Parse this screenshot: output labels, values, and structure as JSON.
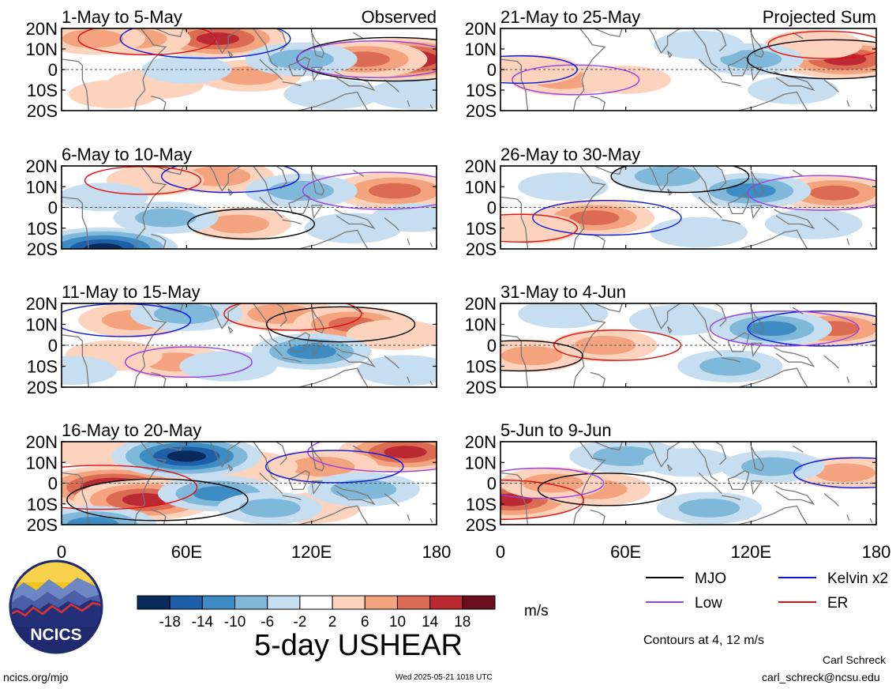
{
  "figure": {
    "title": "5-day USHEAR",
    "units": "m/s",
    "contour_note": "Contours at 4, 12 m/s",
    "footer_left": "ncics.org/mjo",
    "footer_center": "Wed 2025-05-21 1018 UTC",
    "author": "Carl Schreck",
    "email": "carl_schreck@ncsu.edu",
    "logo_text": "NCICS"
  },
  "colors": {
    "colorbar": [
      "#0a2a5c",
      "#1f5fa8",
      "#3d8cc4",
      "#80b8da",
      "#c6def0",
      "#ffffff",
      "#fdd3bd",
      "#f4a37f",
      "#dc6b53",
      "#bb2a33",
      "#6b0f20"
    ],
    "mjo": "#000000",
    "low": "#9a3fe0",
    "kelvin": "#0a18d8",
    "er": "#e01010",
    "coast": "#777777"
  },
  "chart_data": [
    {
      "type": "heatmap",
      "panel": "1-May to 5-May",
      "label": "Observed",
      "column": "observed",
      "x_range": [
        0,
        180
      ],
      "y_range": [
        -20,
        20
      ],
      "units": "m/s",
      "features": [
        {
          "lon": 165,
          "lat": 5,
          "value": 20
        },
        {
          "lon": 145,
          "lat": 5,
          "value": 14
        },
        {
          "lon": 75,
          "lat": 15,
          "value": 16
        },
        {
          "lon": 35,
          "lat": 15,
          "value": 10
        },
        {
          "lon": 15,
          "lat": 15,
          "value": 8
        },
        {
          "lon": 90,
          "lat": -3,
          "value": 8
        },
        {
          "lon": 45,
          "lat": -7,
          "value": 6
        },
        {
          "lon": 25,
          "lat": -12,
          "value": 4
        },
        {
          "lon": 115,
          "lat": 5,
          "value": -10
        },
        {
          "lon": 130,
          "lat": -12,
          "value": -6
        },
        {
          "lon": 170,
          "lat": -12,
          "value": -6
        },
        {
          "lon": 60,
          "lat": 0,
          "value": -4
        }
      ]
    },
    {
      "type": "heatmap",
      "panel": "6-May to 10-May",
      "column": "observed",
      "x_range": [
        0,
        180
      ],
      "y_range": [
        -20,
        20
      ],
      "units": "m/s",
      "features": [
        {
          "lon": 160,
          "lat": 8,
          "value": 14
        },
        {
          "lon": 75,
          "lat": 15,
          "value": 10
        },
        {
          "lon": 45,
          "lat": 13,
          "value": 6
        },
        {
          "lon": 85,
          "lat": -8,
          "value": 8
        },
        {
          "lon": 20,
          "lat": -20,
          "value": -20
        },
        {
          "lon": 115,
          "lat": 8,
          "value": -10
        },
        {
          "lon": 50,
          "lat": -5,
          "value": -8
        },
        {
          "lon": 20,
          "lat": 5,
          "value": -4
        },
        {
          "lon": 140,
          "lat": -10,
          "value": -6
        },
        {
          "lon": 170,
          "lat": -5,
          "value": -4
        }
      ]
    },
    {
      "type": "heatmap",
      "panel": "11-May to 15-May",
      "column": "observed",
      "x_range": [
        0,
        180
      ],
      "y_range": [
        -20,
        20
      ],
      "units": "m/s",
      "features": [
        {
          "lon": 35,
          "lat": 12,
          "value": 10
        },
        {
          "lon": 105,
          "lat": 15,
          "value": 10
        },
        {
          "lon": 140,
          "lat": 10,
          "value": 12
        },
        {
          "lon": 55,
          "lat": -8,
          "value": 8
        },
        {
          "lon": 25,
          "lat": -5,
          "value": 6
        },
        {
          "lon": 160,
          "lat": 5,
          "value": 6
        },
        {
          "lon": 60,
          "lat": 15,
          "value": -10
        },
        {
          "lon": 120,
          "lat": -3,
          "value": -12
        },
        {
          "lon": 80,
          "lat": -10,
          "value": -6
        },
        {
          "lon": 165,
          "lat": -12,
          "value": -6
        },
        {
          "lon": 5,
          "lat": -12,
          "value": -4
        }
      ]
    },
    {
      "type": "heatmap",
      "panel": "16-May to 20-May",
      "column": "observed",
      "x_range": [
        0,
        180
      ],
      "y_range": [
        -20,
        20
      ],
      "units": "m/s",
      "features": [
        {
          "lon": 25,
          "lat": -2,
          "value": 20
        },
        {
          "lon": 40,
          "lat": -8,
          "value": 18
        },
        {
          "lon": 165,
          "lat": 15,
          "value": 16
        },
        {
          "lon": 125,
          "lat": 8,
          "value": 10
        },
        {
          "lon": 90,
          "lat": 8,
          "value": 6
        },
        {
          "lon": 120,
          "lat": -12,
          "value": 6
        },
        {
          "lon": 15,
          "lat": 15,
          "value": 4
        },
        {
          "lon": 60,
          "lat": 13,
          "value": -20
        },
        {
          "lon": 75,
          "lat": -5,
          "value": -12
        },
        {
          "lon": 15,
          "lat": -20,
          "value": -14
        },
        {
          "lon": 145,
          "lat": -3,
          "value": -10
        },
        {
          "lon": 100,
          "lat": -12,
          "value": -8
        }
      ]
    },
    {
      "type": "heatmap",
      "panel": "21-May to 25-May",
      "label": "Projected Sum",
      "column": "projected",
      "x_range": [
        0,
        180
      ],
      "y_range": [
        -20,
        20
      ],
      "units": "m/s",
      "features": [
        {
          "lon": 165,
          "lat": 5,
          "value": 16
        },
        {
          "lon": 30,
          "lat": -5,
          "value": 8
        },
        {
          "lon": 15,
          "lat": 0,
          "value": 6
        },
        {
          "lon": 150,
          "lat": 12,
          "value": 6
        },
        {
          "lon": 60,
          "lat": -5,
          "value": 4
        },
        {
          "lon": 120,
          "lat": 5,
          "value": -8
        },
        {
          "lon": 140,
          "lat": -10,
          "value": -4
        },
        {
          "lon": 95,
          "lat": 12,
          "value": -4
        }
      ]
    },
    {
      "type": "heatmap",
      "panel": "26-May to 30-May",
      "column": "projected",
      "x_range": [
        0,
        180
      ],
      "y_range": [
        -20,
        20
      ],
      "units": "m/s",
      "features": [
        {
          "lon": 160,
          "lat": 7,
          "value": 12
        },
        {
          "lon": 45,
          "lat": -5,
          "value": 12
        },
        {
          "lon": 15,
          "lat": -10,
          "value": 6
        },
        {
          "lon": 80,
          "lat": 15,
          "value": -10
        },
        {
          "lon": 120,
          "lat": 8,
          "value": -12
        },
        {
          "lon": 150,
          "lat": -8,
          "value": -6
        },
        {
          "lon": 30,
          "lat": 10,
          "value": -4
        },
        {
          "lon": 95,
          "lat": -12,
          "value": -6
        }
      ]
    },
    {
      "type": "heatmap",
      "panel": "31-May to 4-Jun",
      "column": "projected",
      "x_range": [
        0,
        180
      ],
      "y_range": [
        -20,
        20
      ],
      "units": "m/s",
      "features": [
        {
          "lon": 160,
          "lat": 8,
          "value": 12
        },
        {
          "lon": 50,
          "lat": 0,
          "value": 8
        },
        {
          "lon": 15,
          "lat": -5,
          "value": 8
        },
        {
          "lon": 130,
          "lat": 8,
          "value": -12
        },
        {
          "lon": 110,
          "lat": -10,
          "value": -8
        },
        {
          "lon": 85,
          "lat": 12,
          "value": -6
        },
        {
          "lon": 30,
          "lat": 15,
          "value": -4
        }
      ]
    },
    {
      "type": "heatmap",
      "panel": "5-Jun to 9-Jun",
      "column": "projected",
      "x_range": [
        0,
        180
      ],
      "y_range": [
        -20,
        20
      ],
      "units": "m/s",
      "features": [
        {
          "lon": 5,
          "lat": -8,
          "value": 16
        },
        {
          "lon": 45,
          "lat": -3,
          "value": 10
        },
        {
          "lon": 25,
          "lat": 0,
          "value": 8
        },
        {
          "lon": 165,
          "lat": 5,
          "value": 8
        },
        {
          "lon": 60,
          "lat": 13,
          "value": -10
        },
        {
          "lon": 100,
          "lat": -12,
          "value": -8
        },
        {
          "lon": 130,
          "lat": 8,
          "value": -8
        },
        {
          "lon": 90,
          "lat": 10,
          "value": -4
        }
      ]
    }
  ],
  "x_ticks": [
    "0",
    "60E",
    "120E",
    "180"
  ],
  "y_ticks": [
    "20N",
    "10N",
    "0",
    "10S",
    "20S"
  ],
  "colorbar_labels": [
    "-18",
    "-14",
    "-10",
    "-6",
    "-2",
    "2",
    "6",
    "10",
    "14",
    "18"
  ],
  "legend": [
    {
      "label": "MJO",
      "key": "mjo"
    },
    {
      "label": "Kelvin x2",
      "key": "kelvin"
    },
    {
      "label": "Low",
      "key": "low"
    },
    {
      "label": "ER",
      "key": "er"
    }
  ]
}
